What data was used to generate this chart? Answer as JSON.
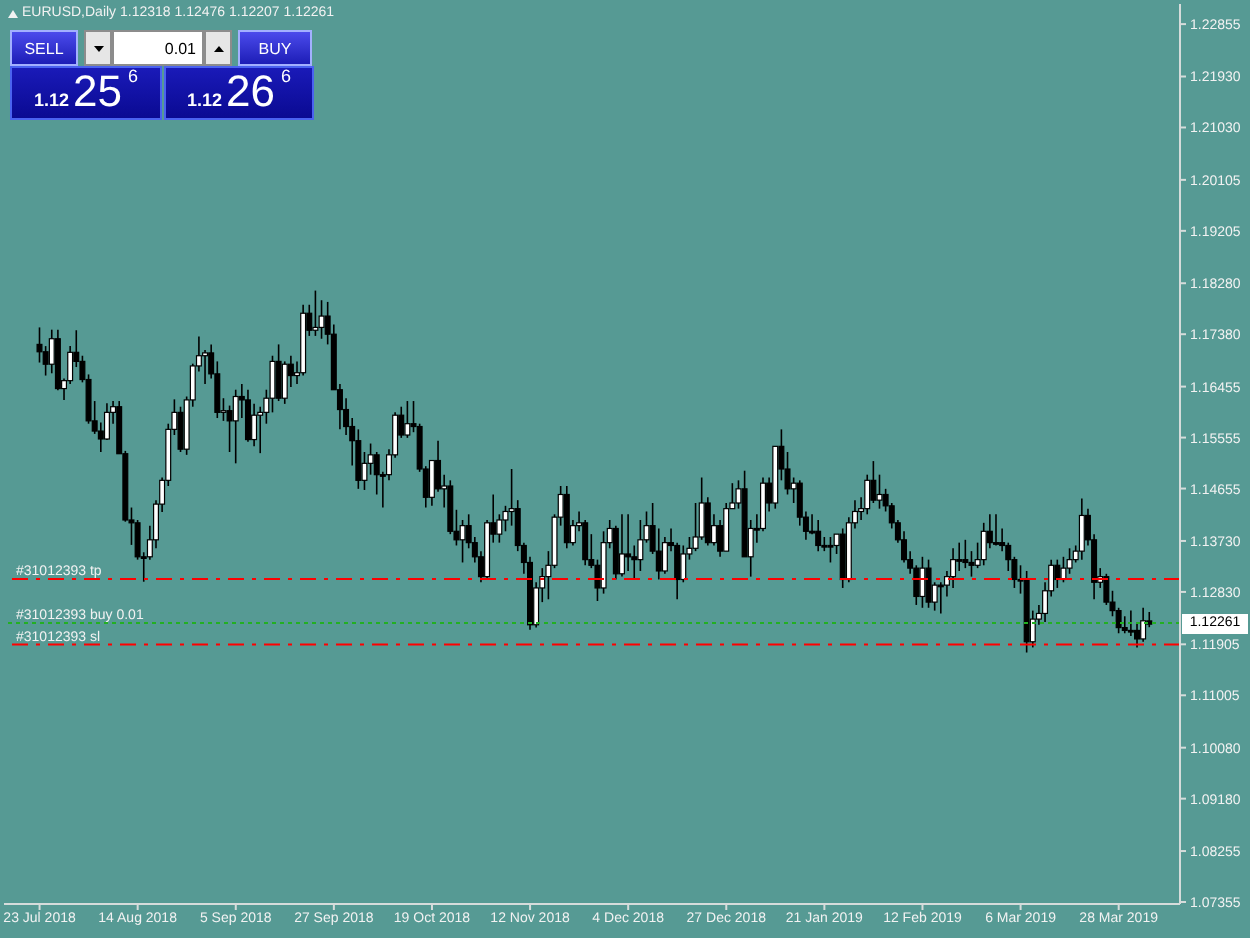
{
  "chart_data": {
    "type": "candlestick",
    "title": "EURUSD,Daily 1.12318 1.12476 1.12207 1.12261",
    "categories": [
      "23 Jul 2018",
      null,
      null,
      null,
      null,
      null,
      null,
      null,
      null,
      null,
      null,
      null,
      null,
      null,
      null,
      null,
      "14 Aug 2018",
      null,
      null,
      null,
      null,
      null,
      null,
      null,
      null,
      null,
      null,
      null,
      null,
      null,
      null,
      null,
      "5 Sep 2018",
      null,
      null,
      null,
      null,
      null,
      null,
      null,
      null,
      null,
      null,
      null,
      null,
      null,
      null,
      null,
      "27 Sep 2018",
      null,
      null,
      null,
      null,
      null,
      null,
      null,
      null,
      null,
      null,
      null,
      null,
      null,
      null,
      null,
      "19 Oct 2018",
      null,
      null,
      null,
      null,
      null,
      null,
      null,
      null,
      null,
      null,
      null,
      null,
      null,
      null,
      null,
      "12 Nov 2018",
      null,
      null,
      null,
      null,
      null,
      null,
      null,
      null,
      null,
      null,
      null,
      null,
      null,
      null,
      null,
      "4 Dec 2018",
      null,
      null,
      null,
      null,
      null,
      null,
      null,
      null,
      null,
      null,
      null,
      null,
      null,
      null,
      null,
      "27 Dec 2018",
      null,
      null,
      null,
      null,
      null,
      null,
      null,
      null,
      null,
      null,
      null,
      null,
      null,
      null,
      null,
      "21 Jan 2019",
      null,
      null,
      null,
      null,
      null,
      null,
      null,
      null,
      null,
      null,
      null,
      null,
      null,
      null,
      null,
      "12 Feb 2019",
      null,
      null,
      null,
      null,
      null,
      null,
      null,
      null,
      null,
      null,
      null,
      null,
      null,
      null,
      null,
      "6 Mar 2019",
      null,
      null,
      null,
      null,
      null,
      null,
      null,
      null,
      null,
      null,
      null,
      null,
      null,
      null,
      null,
      "28 Mar 2019",
      null,
      null,
      null,
      null,
      null
    ],
    "ohlc": [
      [
        1.172,
        1.175,
        1.1688,
        1.1707
      ],
      [
        1.1707,
        1.1717,
        1.1665,
        1.1685
      ],
      [
        1.1685,
        1.1746,
        1.1669,
        1.173
      ],
      [
        1.173,
        1.1746,
        1.1639,
        1.1642
      ],
      [
        1.1642,
        1.166,
        1.1622,
        1.1656
      ],
      [
        1.1656,
        1.1717,
        1.165,
        1.1706
      ],
      [
        1.1706,
        1.1745,
        1.168,
        1.169
      ],
      [
        1.169,
        1.17,
        1.1653,
        1.1658
      ],
      [
        1.1658,
        1.1667,
        1.158,
        1.1585
      ],
      [
        1.1585,
        1.162,
        1.1562,
        1.1567
      ],
      [
        1.1567,
        1.1582,
        1.153,
        1.1553
      ],
      [
        1.1553,
        1.1616,
        1.1551,
        1.16
      ],
      [
        1.16,
        1.162,
        1.158,
        1.161
      ],
      [
        1.161,
        1.162,
        1.1527,
        1.1527
      ],
      [
        1.1527,
        1.1532,
        1.1407,
        1.141
      ],
      [
        1.141,
        1.1432,
        1.1366,
        1.1405
      ],
      [
        1.1405,
        1.141,
        1.134,
        1.1345
      ],
      [
        1.1345,
        1.1353,
        1.1301,
        1.1345
      ],
      [
        1.1345,
        1.14,
        1.134,
        1.1375
      ],
      [
        1.1375,
        1.1445,
        1.136,
        1.1438
      ],
      [
        1.1438,
        1.1485,
        1.1424,
        1.148
      ],
      [
        1.148,
        1.158,
        1.147,
        1.157
      ],
      [
        1.157,
        1.1623,
        1.156,
        1.16
      ],
      [
        1.16,
        1.161,
        1.153,
        1.1535
      ],
      [
        1.1535,
        1.1628,
        1.1525,
        1.1622
      ],
      [
        1.1622,
        1.1686,
        1.161,
        1.1682
      ],
      [
        1.1682,
        1.1734,
        1.1672,
        1.17
      ],
      [
        1.17,
        1.171,
        1.165,
        1.1705
      ],
      [
        1.1705,
        1.172,
        1.166,
        1.1668
      ],
      [
        1.1668,
        1.169,
        1.159,
        1.16
      ],
      [
        1.16,
        1.1625,
        1.1585,
        1.1603
      ],
      [
        1.1603,
        1.1612,
        1.153,
        1.1585
      ],
      [
        1.1585,
        1.164,
        1.151,
        1.1628
      ],
      [
        1.1628,
        1.165,
        1.159,
        1.1622
      ],
      [
        1.1622,
        1.164,
        1.1548,
        1.1552
      ],
      [
        1.1552,
        1.1615,
        1.154,
        1.1595
      ],
      [
        1.1595,
        1.161,
        1.1528,
        1.16
      ],
      [
        1.16,
        1.164,
        1.158,
        1.1625
      ],
      [
        1.1625,
        1.17,
        1.16,
        1.169
      ],
      [
        1.169,
        1.172,
        1.162,
        1.1625
      ],
      [
        1.1625,
        1.169,
        1.1615,
        1.1685
      ],
      [
        1.1685,
        1.17,
        1.1645,
        1.1665
      ],
      [
        1.1665,
        1.169,
        1.165,
        1.167
      ],
      [
        1.167,
        1.179,
        1.1665,
        1.1775
      ],
      [
        1.1775,
        1.179,
        1.1735,
        1.1745
      ],
      [
        1.1745,
        1.1815,
        1.1735,
        1.175
      ],
      [
        1.175,
        1.1798,
        1.173,
        1.177
      ],
      [
        1.177,
        1.1795,
        1.172,
        1.1738
      ],
      [
        1.1738,
        1.1755,
        1.164,
        1.164
      ],
      [
        1.164,
        1.165,
        1.157,
        1.1605
      ],
      [
        1.1605,
        1.1625,
        1.156,
        1.1575
      ],
      [
        1.1575,
        1.159,
        1.1506,
        1.155
      ],
      [
        1.155,
        1.157,
        1.1465,
        1.148
      ],
      [
        1.148,
        1.153,
        1.1463,
        1.151
      ],
      [
        1.151,
        1.1545,
        1.149,
        1.1525
      ],
      [
        1.1525,
        1.153,
        1.1455,
        1.149
      ],
      [
        1.149,
        1.1495,
        1.1432,
        1.149
      ],
      [
        1.149,
        1.1535,
        1.148,
        1.1525
      ],
      [
        1.1525,
        1.16,
        1.152,
        1.1595
      ],
      [
        1.1595,
        1.161,
        1.1555,
        1.156
      ],
      [
        1.156,
        1.162,
        1.1555,
        1.158
      ],
      [
        1.158,
        1.162,
        1.1565,
        1.1575
      ],
      [
        1.1575,
        1.158,
        1.1495,
        1.15
      ],
      [
        1.15,
        1.1505,
        1.1432,
        1.145
      ],
      [
        1.145,
        1.1515,
        1.1435,
        1.1515
      ],
      [
        1.1515,
        1.155,
        1.146,
        1.1465
      ],
      [
        1.1465,
        1.149,
        1.1432,
        1.147
      ],
      [
        1.147,
        1.148,
        1.1385,
        1.139
      ],
      [
        1.139,
        1.1428,
        1.1365,
        1.1375
      ],
      [
        1.1375,
        1.141,
        1.1335,
        1.14
      ],
      [
        1.14,
        1.142,
        1.136,
        1.137
      ],
      [
        1.137,
        1.138,
        1.1335,
        1.1345
      ],
      [
        1.1345,
        1.1355,
        1.13,
        1.131
      ],
      [
        1.131,
        1.141,
        1.1305,
        1.1405
      ],
      [
        1.1405,
        1.1455,
        1.137,
        1.1385
      ],
      [
        1.1385,
        1.142,
        1.137,
        1.141
      ],
      [
        1.141,
        1.1435,
        1.139,
        1.1425
      ],
      [
        1.1425,
        1.15,
        1.14,
        1.143
      ],
      [
        1.143,
        1.1445,
        1.1355,
        1.1365
      ],
      [
        1.1365,
        1.137,
        1.1315,
        1.1335
      ],
      [
        1.1335,
        1.1345,
        1.1216,
        1.1225
      ],
      [
        1.1225,
        1.13,
        1.122,
        1.129
      ],
      [
        1.129,
        1.1325,
        1.1265,
        1.131
      ],
      [
        1.131,
        1.1355,
        1.127,
        1.133
      ],
      [
        1.133,
        1.142,
        1.1325,
        1.1415
      ],
      [
        1.1415,
        1.147,
        1.14,
        1.1455
      ],
      [
        1.1455,
        1.147,
        1.136,
        1.137
      ],
      [
        1.137,
        1.141,
        1.1365,
        1.14
      ],
      [
        1.14,
        1.1425,
        1.139,
        1.1405
      ],
      [
        1.1405,
        1.141,
        1.133,
        1.134
      ],
      [
        1.134,
        1.1385,
        1.1325,
        1.133
      ],
      [
        1.133,
        1.134,
        1.1267,
        1.129
      ],
      [
        1.129,
        1.139,
        1.128,
        1.137
      ],
      [
        1.137,
        1.141,
        1.136,
        1.1395
      ],
      [
        1.1395,
        1.14,
        1.1305,
        1.1315
      ],
      [
        1.1315,
        1.142,
        1.131,
        1.135
      ],
      [
        1.135,
        1.142,
        1.132,
        1.1345
      ],
      [
        1.1345,
        1.1365,
        1.1305,
        1.134
      ],
      [
        1.134,
        1.141,
        1.132,
        1.1375
      ],
      [
        1.1375,
        1.1425,
        1.137,
        1.14
      ],
      [
        1.14,
        1.144,
        1.135,
        1.1355
      ],
      [
        1.1355,
        1.1395,
        1.1305,
        1.132
      ],
      [
        1.132,
        1.138,
        1.1315,
        1.137
      ],
      [
        1.137,
        1.1395,
        1.1355,
        1.1365
      ],
      [
        1.1365,
        1.137,
        1.127,
        1.1305
      ],
      [
        1.1305,
        1.1365,
        1.13,
        1.135
      ],
      [
        1.135,
        1.138,
        1.134,
        1.136
      ],
      [
        1.136,
        1.144,
        1.1355,
        1.138
      ],
      [
        1.138,
        1.1485,
        1.1375,
        1.144
      ],
      [
        1.144,
        1.145,
        1.1365,
        1.137
      ],
      [
        1.137,
        1.142,
        1.1365,
        1.14
      ],
      [
        1.14,
        1.141,
        1.1345,
        1.1355
      ],
      [
        1.1355,
        1.144,
        1.1355,
        1.143
      ],
      [
        1.143,
        1.1475,
        1.143,
        1.144
      ],
      [
        1.144,
        1.148,
        1.143,
        1.1465
      ],
      [
        1.1465,
        1.1497,
        1.1345,
        1.1345
      ],
      [
        1.1345,
        1.141,
        1.131,
        1.1395
      ],
      [
        1.1395,
        1.142,
        1.137,
        1.1395
      ],
      [
        1.1395,
        1.1485,
        1.139,
        1.1475
      ],
      [
        1.1475,
        1.1485,
        1.1425,
        1.144
      ],
      [
        1.144,
        1.154,
        1.143,
        1.154
      ],
      [
        1.154,
        1.157,
        1.148,
        1.15
      ],
      [
        1.15,
        1.153,
        1.1455,
        1.1465
      ],
      [
        1.1465,
        1.1485,
        1.144,
        1.1475
      ],
      [
        1.1475,
        1.148,
        1.14,
        1.1415
      ],
      [
        1.1415,
        1.1425,
        1.1375,
        1.139
      ],
      [
        1.139,
        1.142,
        1.1385,
        1.139
      ],
      [
        1.139,
        1.141,
        1.1355,
        1.1365
      ],
      [
        1.1365,
        1.138,
        1.1355,
        1.1365
      ],
      [
        1.1365,
        1.138,
        1.1335,
        1.1365
      ],
      [
        1.1365,
        1.1385,
        1.135,
        1.1385
      ],
      [
        1.1385,
        1.1395,
        1.129,
        1.1305
      ],
      [
        1.1305,
        1.1415,
        1.13,
        1.1405
      ],
      [
        1.1405,
        1.1445,
        1.1395,
        1.1425
      ],
      [
        1.1425,
        1.145,
        1.141,
        1.143
      ],
      [
        1.143,
        1.149,
        1.142,
        1.148
      ],
      [
        1.148,
        1.1514,
        1.144,
        1.1445
      ],
      [
        1.1445,
        1.149,
        1.143,
        1.1455
      ],
      [
        1.1455,
        1.1465,
        1.1425,
        1.1435
      ],
      [
        1.1435,
        1.144,
        1.1395,
        1.1405
      ],
      [
        1.1405,
        1.141,
        1.137,
        1.1375
      ],
      [
        1.1375,
        1.139,
        1.1335,
        1.134
      ],
      [
        1.134,
        1.1355,
        1.1315,
        1.1325
      ],
      [
        1.1325,
        1.133,
        1.126,
        1.1275
      ],
      [
        1.1275,
        1.1345,
        1.1255,
        1.1325
      ],
      [
        1.1325,
        1.134,
        1.1255,
        1.1265
      ],
      [
        1.1265,
        1.13,
        1.125,
        1.1295
      ],
      [
        1.1295,
        1.13,
        1.1245,
        1.1295
      ],
      [
        1.1295,
        1.132,
        1.1275,
        1.131
      ],
      [
        1.131,
        1.136,
        1.129,
        1.134
      ],
      [
        1.134,
        1.137,
        1.132,
        1.134
      ],
      [
        1.134,
        1.1375,
        1.1325,
        1.1335
      ],
      [
        1.1335,
        1.1355,
        1.131,
        1.133
      ],
      [
        1.133,
        1.137,
        1.1325,
        1.134
      ],
      [
        1.134,
        1.1405,
        1.133,
        1.139
      ],
      [
        1.139,
        1.142,
        1.136,
        1.137
      ],
      [
        1.137,
        1.142,
        1.1365,
        1.137
      ],
      [
        1.137,
        1.1395,
        1.1355,
        1.1365
      ],
      [
        1.1365,
        1.137,
        1.132,
        1.134
      ],
      [
        1.134,
        1.1345,
        1.129,
        1.1305
      ],
      [
        1.1305,
        1.133,
        1.128,
        1.1305
      ],
      [
        1.1305,
        1.132,
        1.1176,
        1.1195
      ],
      [
        1.1195,
        1.125,
        1.1185,
        1.1235
      ],
      [
        1.1235,
        1.126,
        1.1225,
        1.1245
      ],
      [
        1.1245,
        1.13,
        1.123,
        1.1285
      ],
      [
        1.1285,
        1.134,
        1.1275,
        1.133
      ],
      [
        1.133,
        1.134,
        1.129,
        1.1305
      ],
      [
        1.1305,
        1.1345,
        1.13,
        1.1325
      ],
      [
        1.1325,
        1.136,
        1.1315,
        1.134
      ],
      [
        1.134,
        1.1365,
        1.1335,
        1.1355
      ],
      [
        1.1355,
        1.1448,
        1.134,
        1.1418
      ],
      [
        1.1418,
        1.143,
        1.1365,
        1.1375
      ],
      [
        1.1375,
        1.1385,
        1.127,
        1.13
      ],
      [
        1.13,
        1.1325,
        1.129,
        1.131
      ],
      [
        1.131,
        1.1315,
        1.126,
        1.1265
      ],
      [
        1.1265,
        1.1285,
        1.124,
        1.125
      ],
      [
        1.125,
        1.1255,
        1.121,
        1.122
      ],
      [
        1.122,
        1.124,
        1.121,
        1.1215
      ],
      [
        1.1215,
        1.125,
        1.1205,
        1.1215
      ],
      [
        1.1215,
        1.123,
        1.1185,
        1.12
      ],
      [
        1.12,
        1.1255,
        1.1195,
        1.1232
      ],
      [
        1.12318,
        1.12476,
        1.12207,
        1.12261
      ]
    ],
    "color": "#000000",
    "colors": [
      "#000000",
      "#000000",
      "#ffffff",
      "#000000",
      "#ffffff",
      "#ffffff",
      "#000000",
      "#000000",
      "#000000",
      "#000000",
      "#000000",
      "#ffffff",
      "#ffffff",
      "#000000",
      "#000000",
      "#000000",
      "#000000",
      "#000000",
      "#ffffff",
      "#ffffff",
      "#ffffff",
      "#ffffff",
      "#ffffff",
      "#000000",
      "#ffffff",
      "#ffffff",
      "#ffffff",
      "#ffffff",
      "#000000",
      "#000000",
      "#ffffff",
      "#000000",
      "#ffffff",
      "#000000",
      "#000000",
      "#ffffff",
      "#ffffff",
      "#ffffff",
      "#ffffff",
      "#000000",
      "#ffffff",
      "#000000",
      "#ffffff",
      "#ffffff",
      "#000000",
      "#ffffff",
      "#ffffff",
      "#000000",
      "#000000",
      "#000000",
      "#000000",
      "#000000",
      "#000000",
      "#ffffff",
      "#ffffff",
      "#000000",
      "#000000",
      "#ffffff",
      "#ffffff",
      "#000000",
      "#ffffff",
      "#000000",
      "#000000",
      "#000000",
      "#ffffff",
      "#000000",
      "#ffffff",
      "#000000",
      "#000000",
      "#ffffff",
      "#000000",
      "#000000",
      "#000000",
      "#ffffff",
      "#000000",
      "#ffffff",
      "#ffffff",
      "#ffffff",
      "#000000",
      "#000000",
      "#000000",
      "#ffffff",
      "#ffffff",
      "#ffffff",
      "#ffffff",
      "#ffffff",
      "#000000",
      "#ffffff",
      "#ffffff",
      "#000000",
      "#000000",
      "#000000",
      "#ffffff",
      "#ffffff",
      "#000000",
      "#ffffff",
      "#000000",
      "#000000",
      "#ffffff",
      "#ffffff",
      "#000000",
      "#000000",
      "#ffffff",
      "#000000",
      "#000000",
      "#ffffff",
      "#ffffff",
      "#ffffff",
      "#ffffff",
      "#000000",
      "#ffffff",
      "#000000",
      "#ffffff",
      "#ffffff",
      "#ffffff",
      "#000000",
      "#ffffff",
      "#000000",
      "#ffffff",
      "#000000",
      "#ffffff",
      "#000000",
      "#000000",
      "#ffffff",
      "#000000",
      "#000000",
      "#000000",
      "#000000",
      "#000000",
      "#000000",
      "#ffffff",
      "#000000",
      "#ffffff",
      "#ffffff",
      "#ffffff",
      "#ffffff",
      "#000000",
      "#ffffff",
      "#000000",
      "#000000",
      "#000000",
      "#000000",
      "#000000",
      "#000000",
      "#ffffff",
      "#000000",
      "#ffffff",
      "#000000",
      "#ffffff",
      "#ffffff",
      "#000000",
      "#000000",
      "#000000",
      "#ffffff",
      "#ffffff",
      "#000000",
      "#000000",
      "#000000",
      "#000000",
      "#000000",
      "#000000",
      "#000000",
      "#ffffff",
      "#ffffff",
      "#ffffff",
      "#ffffff",
      "#000000",
      "#ffffff",
      "#ffffff",
      "#ffffff",
      "#ffffff",
      "#000000",
      "#000000",
      "#ffffff",
      "#000000",
      "#000000",
      "#000000",
      "#000000",
      "#000000",
      "#000000",
      "#ffffff",
      "#000000"
    ],
    "ylim": [
      1.0732,
      1.2321
    ],
    "yticks": [
      1.22855,
      {
        "value": 1.2193,
        "label": "1.21930"
      },
      {
        "value": 1.2103,
        "label": "1.21030"
      },
      1.20105,
      1.19205,
      {
        "value": 1.1828,
        "label": "1.18280"
      },
      {
        "value": 1.1738,
        "label": "1.17380"
      },
      1.16455,
      1.15555,
      1.14655,
      {
        "value": 1.1373,
        "label": "1.13730"
      },
      {
        "value": 1.1283,
        "label": "1.12830"
      },
      1.11905,
      1.11005,
      {
        "value": 1.1008,
        "label": "1.10080"
      },
      {
        "value": 1.0918,
        "label": "1.09180"
      },
      1.08255,
      1.07355
    ],
    "ref_lines": [
      {
        "axis": "y",
        "value": 1.1306,
        "label": "#31012393 tp",
        "color": "#ff0000",
        "line_style": "dashed"
      },
      {
        "axis": "y",
        "value": 1.1228,
        "label": "#31012393 buy 0.01",
        "color": "#22b022",
        "line_style": "dotted"
      },
      {
        "axis": "y",
        "value": 1.119,
        "label": "#31012393 sl",
        "color": "#ff0000",
        "line_style": "dashed"
      }
    ],
    "annotations": [
      "SELL",
      "0.01",
      "BUY",
      "1.12",
      "25$^{6}$",
      "1.12",
      "26$^{6}$",
      "1.12261"
    ]
  }
}
